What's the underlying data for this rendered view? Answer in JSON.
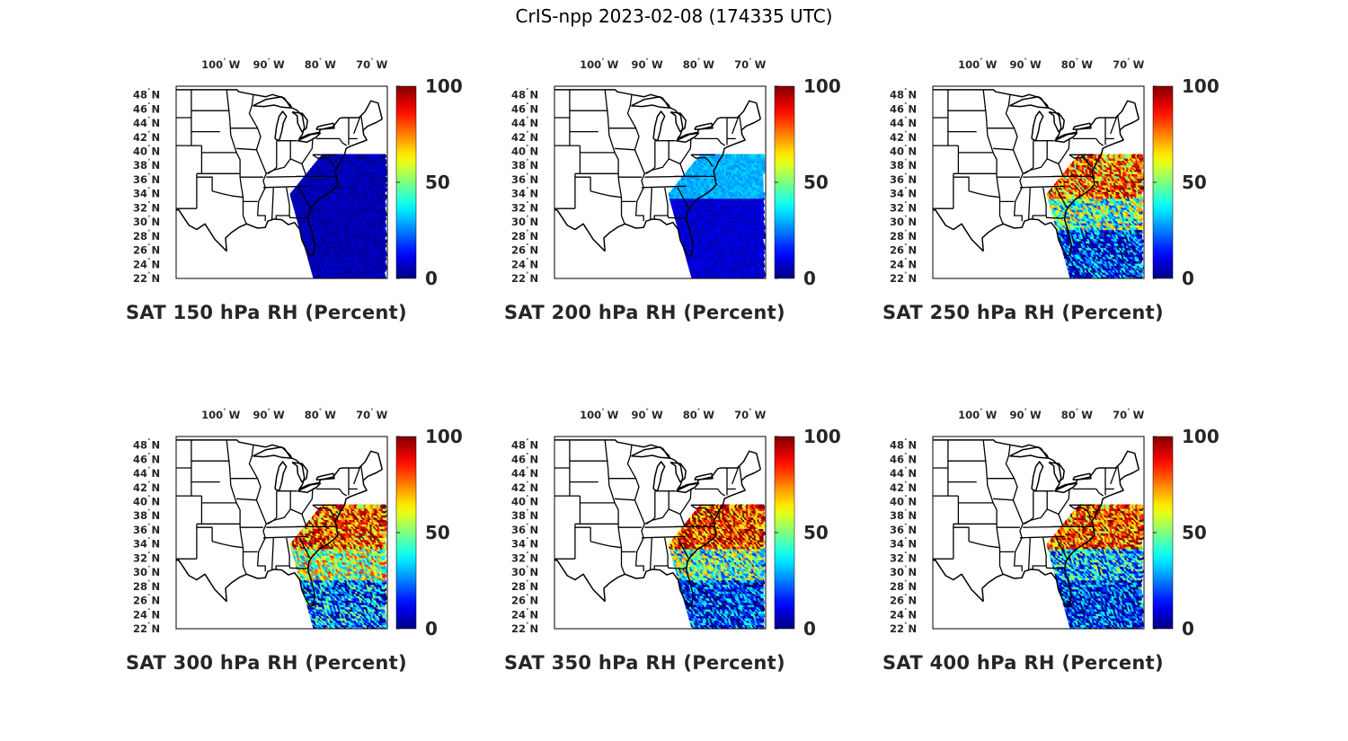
{
  "title": "CrIS-npp 2023-02-08 (174335 UTC)",
  "chart_data": [
    {
      "type": "heatmap",
      "title": "SAT 150 hPa RH (Percent)",
      "level_hpa": 150,
      "variable": "RH",
      "units": "Percent",
      "lon_ticks": [
        "100",
        "90",
        "80",
        "70"
      ],
      "lon_suffix": "W",
      "lat_ticks": [
        "48",
        "46",
        "44",
        "42",
        "40",
        "38",
        "36",
        "34",
        "32",
        "30",
        "28",
        "26",
        "24",
        "22"
      ],
      "lat_suffix": "N",
      "colorbar": {
        "min": 0,
        "max": 100,
        "ticks": [
          "0",
          "50",
          "100"
        ],
        "colormap": "jet"
      },
      "swath_rh": {
        "overall": 5
      }
    },
    {
      "type": "heatmap",
      "title": "SAT 200 hPa RH (Percent)",
      "level_hpa": 200,
      "variable": "RH",
      "units": "Percent",
      "lon_ticks": [
        "100",
        "90",
        "80",
        "70"
      ],
      "lon_suffix": "W",
      "lat_ticks": [
        "48",
        "46",
        "44",
        "42",
        "40",
        "38",
        "36",
        "34",
        "32",
        "30",
        "28",
        "26",
        "24",
        "22"
      ],
      "lat_suffix": "N",
      "colorbar": {
        "min": 0,
        "max": 100,
        "ticks": [
          "0",
          "50",
          "100"
        ],
        "colormap": "jet"
      },
      "swath_rh": {
        "overall": 8,
        "north": 30
      }
    },
    {
      "type": "heatmap",
      "title": "SAT 250 hPa RH (Percent)",
      "level_hpa": 250,
      "variable": "RH",
      "units": "Percent",
      "lon_ticks": [
        "100",
        "90",
        "80",
        "70"
      ],
      "lon_suffix": "W",
      "lat_ticks": [
        "48",
        "46",
        "44",
        "42",
        "40",
        "38",
        "36",
        "34",
        "32",
        "30",
        "28",
        "26",
        "24",
        "22"
      ],
      "lat_suffix": "N",
      "colorbar": {
        "min": 0,
        "max": 100,
        "ticks": [
          "0",
          "50",
          "100"
        ],
        "colormap": "jet"
      },
      "swath_rh": {
        "overall": 45,
        "north": 75,
        "south": 15
      }
    },
    {
      "type": "heatmap",
      "title": "SAT 300 hPa RH (Percent)",
      "level_hpa": 300,
      "variable": "RH",
      "units": "Percent",
      "lon_ticks": [
        "100",
        "90",
        "80",
        "70"
      ],
      "lon_suffix": "W",
      "lat_ticks": [
        "48",
        "46",
        "44",
        "42",
        "40",
        "38",
        "36",
        "34",
        "32",
        "30",
        "28",
        "26",
        "24",
        "22"
      ],
      "lat_suffix": "N",
      "colorbar": {
        "min": 0,
        "max": 100,
        "ticks": [
          "0",
          "50",
          "100"
        ],
        "colormap": "jet"
      },
      "swath_rh": {
        "overall": 55,
        "north": 80,
        "south": 25
      }
    },
    {
      "type": "heatmap",
      "title": "SAT 350 hPa RH (Percent)",
      "level_hpa": 350,
      "variable": "RH",
      "units": "Percent",
      "lon_ticks": [
        "100",
        "90",
        "80",
        "70"
      ],
      "lon_suffix": "W",
      "lat_ticks": [
        "48",
        "46",
        "44",
        "42",
        "40",
        "38",
        "36",
        "34",
        "32",
        "30",
        "28",
        "26",
        "24",
        "22"
      ],
      "lat_suffix": "N",
      "colorbar": {
        "min": 0,
        "max": 100,
        "ticks": [
          "0",
          "50",
          "100"
        ],
        "colormap": "jet"
      },
      "swath_rh": {
        "overall": 45,
        "north": 85,
        "south": 15
      }
    },
    {
      "type": "heatmap",
      "title": "SAT 400 hPa RH (Percent)",
      "level_hpa": 400,
      "variable": "RH",
      "units": "Percent",
      "lon_ticks": [
        "100",
        "90",
        "80",
        "70"
      ],
      "lon_suffix": "W",
      "lat_ticks": [
        "48",
        "46",
        "44",
        "42",
        "40",
        "38",
        "36",
        "34",
        "32",
        "30",
        "28",
        "26",
        "24",
        "22"
      ],
      "lat_suffix": "N",
      "colorbar": {
        "min": 0,
        "max": 100,
        "ticks": [
          "0",
          "50",
          "100"
        ],
        "colormap": "jet"
      },
      "swath_rh": {
        "overall": 30,
        "north": 80,
        "south": 15
      }
    }
  ]
}
